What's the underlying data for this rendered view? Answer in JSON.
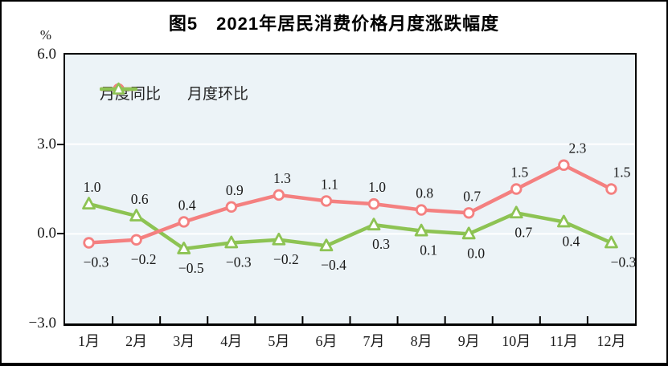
{
  "chart_data": {
    "type": "line",
    "title": "图5　2021年居民消费价格月度涨跌幅度",
    "unit": "%",
    "categories": [
      "1月",
      "2月",
      "3月",
      "4月",
      "5月",
      "6月",
      "7月",
      "8月",
      "9月",
      "10月",
      "11月",
      "12月"
    ],
    "series": [
      {
        "name": "月度同比",
        "color": "#F48080",
        "marker": "circle",
        "values": [
          -0.3,
          -0.2,
          0.4,
          0.9,
          1.3,
          1.1,
          1.0,
          0.8,
          0.7,
          1.5,
          2.3,
          1.5
        ],
        "label_side": [
          "below",
          "below",
          "above",
          "above",
          "above",
          "above",
          "above",
          "above",
          "above",
          "above",
          "above",
          "above"
        ]
      },
      {
        "name": "月度环比",
        "color": "#8DC353",
        "marker": "triangle",
        "values": [
          1.0,
          0.6,
          -0.5,
          -0.3,
          -0.2,
          -0.4,
          0.3,
          0.1,
          0.0,
          0.7,
          0.4,
          -0.3
        ],
        "label_side": [
          "above",
          "above",
          "below",
          "below",
          "below",
          "below",
          "below",
          "below",
          "below",
          "below",
          "below",
          "below"
        ]
      }
    ],
    "ylim": [
      -3.0,
      6.0
    ],
    "yticks": [
      6.0,
      3.0,
      0.0,
      -3.0
    ],
    "ytick_labels": [
      "6.0",
      "3.0",
      "0.0",
      "−3.0"
    ],
    "gridlines": [
      3.0,
      0.0
    ],
    "grid_color": "#ffffff",
    "plot_bg": "#ECF3F7",
    "axis_color": "#000000",
    "legend_position": "top-left-inside"
  }
}
